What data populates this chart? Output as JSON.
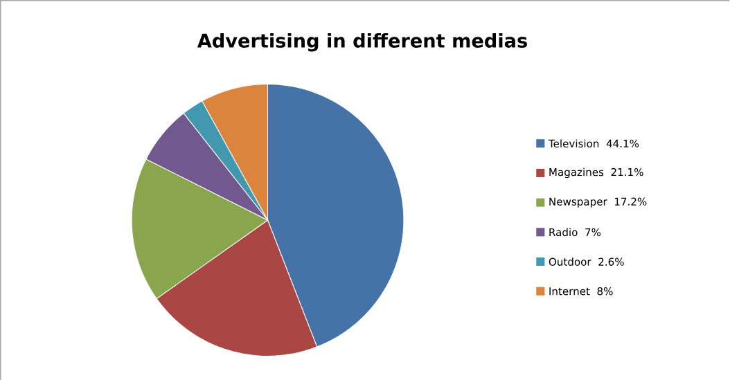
{
  "chart_data": {
    "type": "pie",
    "title": "Advertising in different medias",
    "categories": [
      "Television",
      "Magazines",
      "Newspaper",
      "Radio",
      "Outdoor",
      "Internet"
    ],
    "values": [
      44.1,
      21.1,
      17.2,
      7,
      2.6,
      8
    ],
    "value_labels": [
      "44.1%",
      "21.1%",
      "17.2%",
      "7%",
      "2.6%",
      "8%"
    ],
    "colors": [
      "#4572a7",
      "#aa4643",
      "#89a54e",
      "#71588f",
      "#4198af",
      "#db843d"
    ],
    "legend": "right"
  }
}
